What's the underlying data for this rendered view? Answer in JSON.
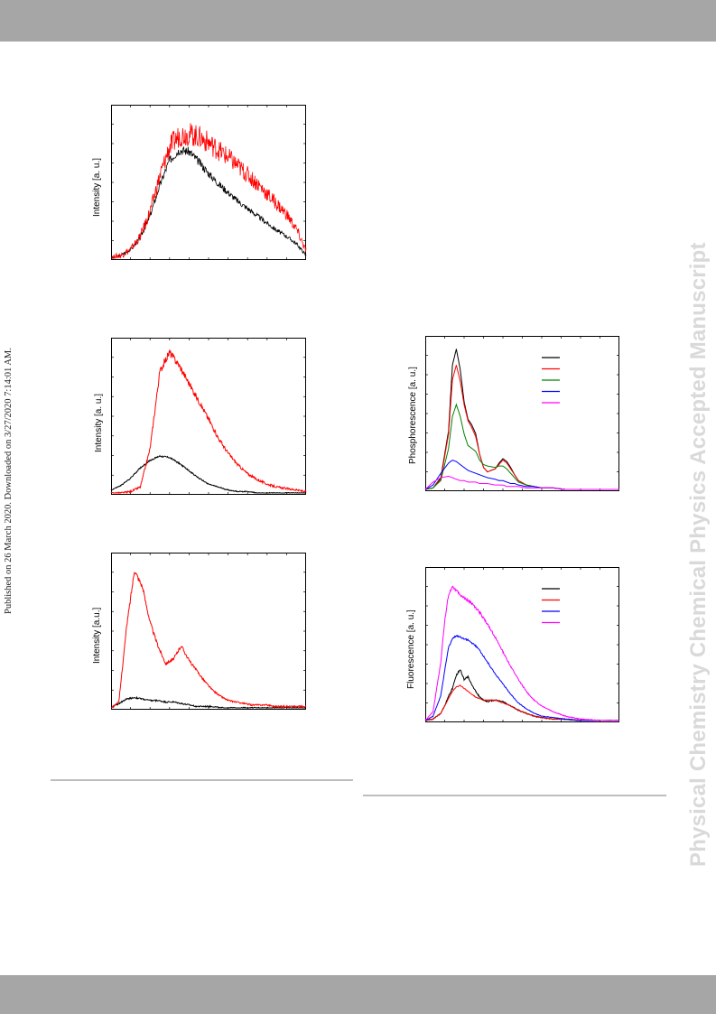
{
  "journal_watermark": "Physical Chemistry Chemical Physics Accepted Manuscript",
  "published_note": "Published on 26 March 2020. Downloaded on 3/27/2020 7:14:01 AM.",
  "colors": {
    "header_bar": "#a6a6a6",
    "black": "#000000",
    "red": "#ff0000",
    "green": "#008000",
    "blue": "#0000ff",
    "magenta": "#ff00ff",
    "watermark": "#d9d9d9"
  },
  "chart_data": [
    {
      "type": "line",
      "ylabel": "Intensity [a. u.]",
      "xlabel": "",
      "title": "",
      "x": [
        0,
        5,
        10,
        15,
        20,
        25,
        30,
        35,
        40,
        45,
        50,
        55,
        60,
        65,
        70,
        75,
        80,
        85,
        90,
        95,
        100
      ],
      "series": [
        {
          "color": "#000000",
          "noise": 0.03,
          "values": [
            0.0,
            0.02,
            0.06,
            0.14,
            0.29,
            0.5,
            0.67,
            0.74,
            0.73,
            0.66,
            0.58,
            0.51,
            0.45,
            0.39,
            0.34,
            0.29,
            0.24,
            0.19,
            0.15,
            0.1,
            0.02
          ]
        },
        {
          "color": "#ff0000",
          "noise": 0.07,
          "values": [
            0.0,
            0.02,
            0.06,
            0.15,
            0.32,
            0.56,
            0.76,
            0.84,
            0.85,
            0.83,
            0.79,
            0.74,
            0.69,
            0.63,
            0.57,
            0.51,
            0.44,
            0.37,
            0.3,
            0.2,
            0.05
          ]
        }
      ],
      "ylim": [
        0,
        1
      ],
      "grid": false
    },
    {
      "type": "line",
      "ylabel": "Intensity [a. u.]",
      "xlabel": "",
      "title": "",
      "x": [
        0,
        5,
        10,
        15,
        20,
        25,
        30,
        35,
        40,
        45,
        50,
        55,
        60,
        65,
        70,
        75,
        80,
        85,
        90,
        95,
        100
      ],
      "series": [
        {
          "color": "#000000",
          "noise": 0.01,
          "values": [
            0.02,
            0.05,
            0.1,
            0.17,
            0.22,
            0.25,
            0.24,
            0.2,
            0.15,
            0.1,
            0.06,
            0.04,
            0.02,
            0.01,
            0.01,
            0.0,
            0.0,
            0.0,
            0.0,
            0.0,
            0.0
          ]
        },
        {
          "color": "#ff0000",
          "noise": 0.02,
          "values": [
            0.0,
            0.0,
            0.01,
            0.04,
            0.3,
            0.82,
            0.95,
            0.86,
            0.74,
            0.62,
            0.5,
            0.37,
            0.27,
            0.19,
            0.13,
            0.09,
            0.06,
            0.04,
            0.03,
            0.02,
            0.01
          ]
        }
      ],
      "ylim": [
        0,
        1
      ],
      "grid": false
    },
    {
      "type": "line",
      "ylabel": "Intensity [a.u.]",
      "xlabel": "",
      "title": "",
      "x": [
        0,
        4,
        8,
        12,
        16,
        20,
        24,
        28,
        32,
        36,
        40,
        44,
        48,
        52,
        56,
        60,
        64,
        68,
        72,
        76,
        80,
        84,
        88,
        92,
        96,
        100
      ],
      "series": [
        {
          "color": "#000000",
          "noise": 0.015,
          "values": [
            0.0,
            0.03,
            0.06,
            0.07,
            0.06,
            0.05,
            0.05,
            0.04,
            0.04,
            0.03,
            0.02,
            0.01,
            0.01,
            0.01,
            0.0,
            0.0,
            0.0,
            0.0,
            0.0,
            0.0,
            0.0,
            0.0,
            0.0,
            0.0,
            0.0,
            0.0
          ]
        },
        {
          "color": "#ff0000",
          "noise": 0.015,
          "values": [
            0.0,
            0.04,
            0.55,
            0.93,
            0.82,
            0.58,
            0.42,
            0.3,
            0.33,
            0.42,
            0.32,
            0.25,
            0.18,
            0.12,
            0.08,
            0.05,
            0.04,
            0.03,
            0.02,
            0.02,
            0.02,
            0.01,
            0.01,
            0.01,
            0.01,
            0.01
          ]
        }
      ],
      "ylim": [
        0,
        1
      ],
      "grid": false
    },
    {
      "type": "line",
      "ylabel": "Phosphorescence [a. u.]",
      "xlabel": "",
      "title": "",
      "legend": {
        "placement": "top-right",
        "entries": [
          "#000000",
          "#ff0000",
          "#008000",
          "#0000ff",
          "#ff00ff"
        ]
      },
      "x": [
        0,
        4,
        8,
        12,
        14,
        16,
        18,
        20,
        22,
        24,
        26,
        28,
        30,
        32,
        36,
        38,
        40,
        42,
        44,
        46,
        48,
        52,
        56,
        60,
        66,
        72,
        80,
        90,
        100
      ],
      "series": [
        {
          "color": "#000000",
          "noise": 0.0,
          "values": [
            0.0,
            0.01,
            0.08,
            0.4,
            0.85,
            0.96,
            0.82,
            0.6,
            0.48,
            0.44,
            0.38,
            0.24,
            0.15,
            0.12,
            0.14,
            0.18,
            0.21,
            0.19,
            0.15,
            0.1,
            0.06,
            0.03,
            0.02,
            0.01,
            0.01,
            0.0,
            0.0,
            0.0,
            0.0
          ]
        },
        {
          "color": "#ff0000",
          "noise": 0.0,
          "values": [
            0.0,
            0.01,
            0.07,
            0.38,
            0.75,
            0.85,
            0.74,
            0.58,
            0.47,
            0.42,
            0.36,
            0.24,
            0.15,
            0.12,
            0.14,
            0.17,
            0.2,
            0.18,
            0.14,
            0.1,
            0.06,
            0.03,
            0.02,
            0.01,
            0.01,
            0.0,
            0.0,
            0.0,
            0.0
          ]
        },
        {
          "color": "#008000",
          "noise": 0.0,
          "values": [
            0.0,
            0.01,
            0.06,
            0.28,
            0.5,
            0.58,
            0.5,
            0.38,
            0.3,
            0.28,
            0.26,
            0.2,
            0.17,
            0.16,
            0.15,
            0.16,
            0.16,
            0.14,
            0.11,
            0.08,
            0.05,
            0.03,
            0.02,
            0.01,
            0.01,
            0.0,
            0.0,
            0.0,
            0.0
          ]
        },
        {
          "color": "#0000ff",
          "noise": 0.0,
          "values": [
            0.0,
            0.03,
            0.11,
            0.18,
            0.2,
            0.19,
            0.17,
            0.15,
            0.13,
            0.12,
            0.11,
            0.1,
            0.09,
            0.08,
            0.07,
            0.06,
            0.06,
            0.05,
            0.04,
            0.04,
            0.03,
            0.02,
            0.02,
            0.01,
            0.01,
            0.0,
            0.0,
            0.0,
            0.0
          ]
        },
        {
          "color": "#ff00ff",
          "noise": 0.0,
          "values": [
            0.0,
            0.05,
            0.08,
            0.09,
            0.08,
            0.07,
            0.06,
            0.06,
            0.05,
            0.05,
            0.05,
            0.04,
            0.04,
            0.04,
            0.03,
            0.03,
            0.03,
            0.02,
            0.02,
            0.02,
            0.02,
            0.01,
            0.01,
            0.01,
            0.01,
            0.0,
            0.0,
            0.0,
            0.0
          ]
        }
      ],
      "ylim": [
        0,
        1
      ],
      "grid": false
    },
    {
      "type": "line",
      "ylabel": "Fluorescence [a. u.]",
      "xlabel": "",
      "title": "",
      "legend": {
        "placement": "top-right",
        "entries": [
          "#000000",
          "#ff0000",
          "#0000ff",
          "#ff00ff"
        ]
      },
      "x": [
        0,
        4,
        8,
        10,
        12,
        14,
        16,
        18,
        20,
        22,
        24,
        26,
        28,
        30,
        32,
        36,
        40,
        44,
        48,
        52,
        56,
        60,
        66,
        72,
        80,
        90,
        100
      ],
      "series": [
        {
          "color": "#000000",
          "noise": 0.01,
          "values": [
            0.0,
            0.01,
            0.05,
            0.1,
            0.17,
            0.22,
            0.31,
            0.35,
            0.28,
            0.3,
            0.24,
            0.2,
            0.16,
            0.14,
            0.13,
            0.14,
            0.13,
            0.1,
            0.07,
            0.05,
            0.03,
            0.02,
            0.01,
            0.01,
            0.0,
            0.0,
            0.0
          ]
        },
        {
          "color": "#ff0000",
          "noise": 0.005,
          "values": [
            0.0,
            0.01,
            0.05,
            0.1,
            0.15,
            0.2,
            0.23,
            0.24,
            0.22,
            0.2,
            0.18,
            0.16,
            0.15,
            0.14,
            0.14,
            0.14,
            0.12,
            0.1,
            0.07,
            0.05,
            0.03,
            0.02,
            0.01,
            0.01,
            0.0,
            0.0,
            0.0
          ]
        },
        {
          "color": "#0000ff",
          "noise": 0.006,
          "values": [
            0.0,
            0.03,
            0.17,
            0.34,
            0.5,
            0.56,
            0.58,
            0.57,
            0.56,
            0.55,
            0.53,
            0.51,
            0.48,
            0.44,
            0.4,
            0.32,
            0.25,
            0.18,
            0.12,
            0.08,
            0.05,
            0.03,
            0.02,
            0.01,
            0.0,
            0.0,
            0.0
          ]
        },
        {
          "color": "#ff00ff",
          "noise": 0.008,
          "values": [
            0.0,
            0.06,
            0.4,
            0.68,
            0.86,
            0.92,
            0.89,
            0.86,
            0.84,
            0.82,
            0.8,
            0.77,
            0.74,
            0.7,
            0.66,
            0.57,
            0.47,
            0.37,
            0.28,
            0.2,
            0.14,
            0.1,
            0.06,
            0.03,
            0.01,
            0.0,
            0.0
          ]
        }
      ],
      "ylim": [
        0,
        1
      ],
      "grid": false
    }
  ]
}
